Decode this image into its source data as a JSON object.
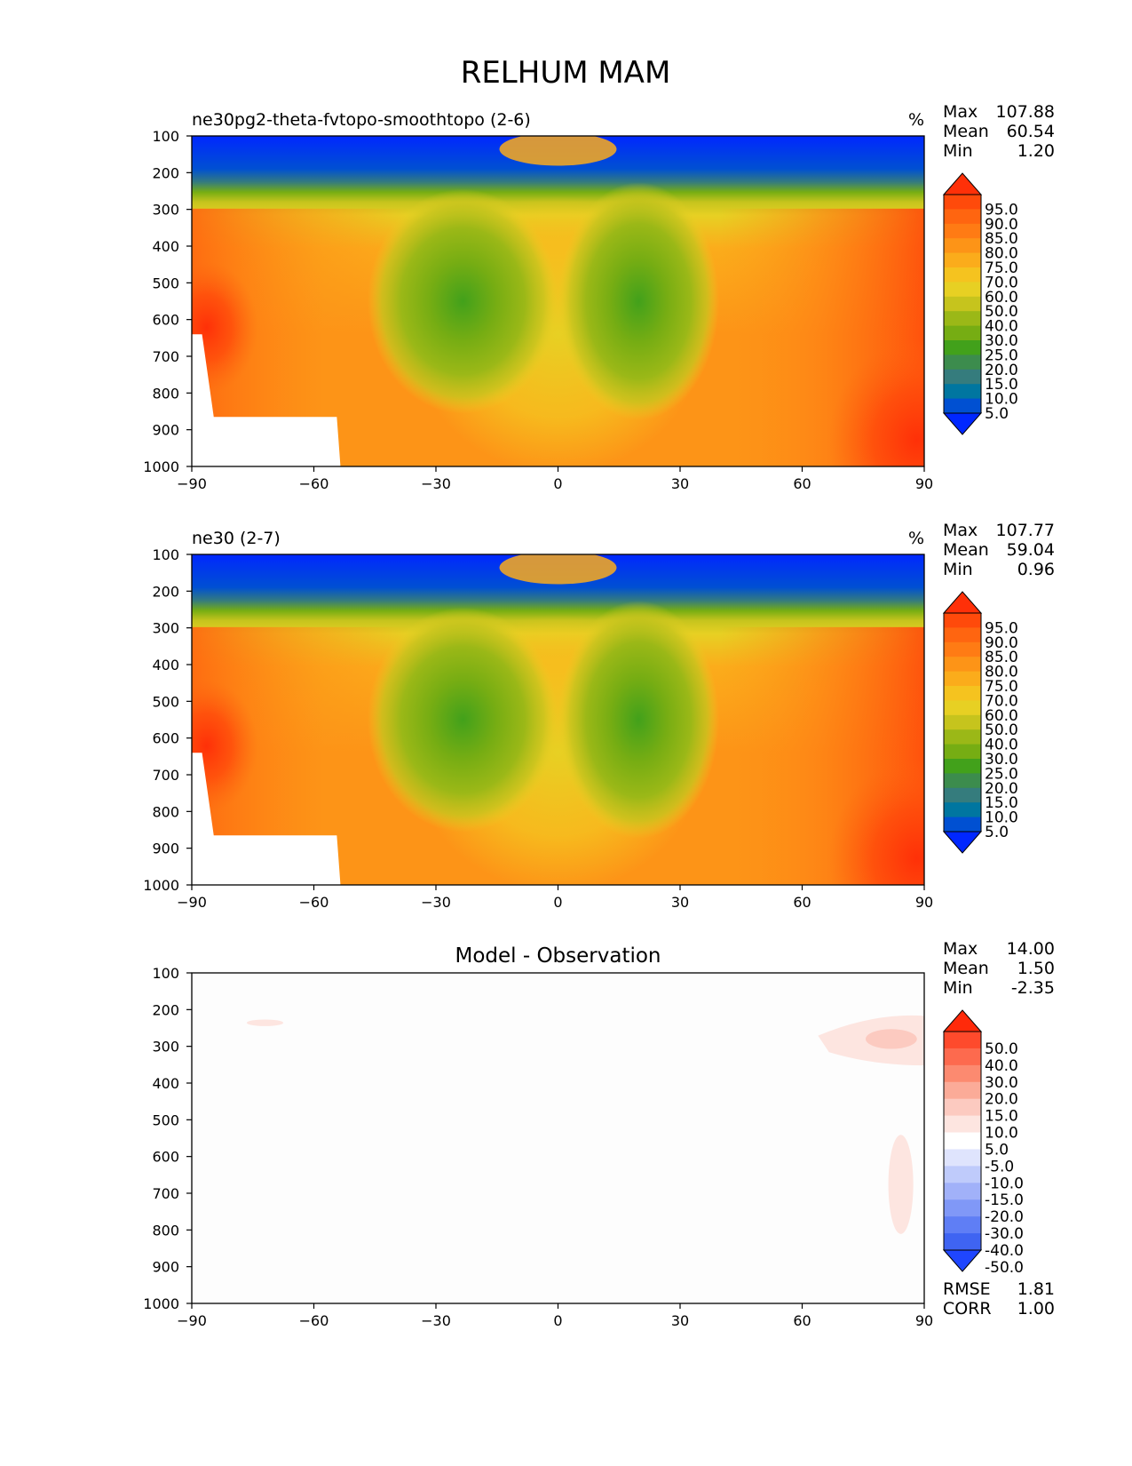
{
  "figure": {
    "title": "RELHUM MAM"
  },
  "chart_data": [
    {
      "type": "heatmap",
      "name": "panel-test",
      "title": "ne30pg2-theta-fvtopo-smoothtopo (2-6)",
      "units": "%",
      "stats": {
        "max_label": "Max",
        "mean_label": "Mean",
        "min_label": "Min",
        "max": "107.88",
        "mean": "60.54",
        "min": "1.20"
      },
      "xticks": [
        "−90",
        "−60",
        "−30",
        "0",
        "30",
        "60",
        "90"
      ],
      "yticks": [
        "100",
        "200",
        "300",
        "400",
        "500",
        "600",
        "700",
        "800",
        "900",
        "1000"
      ],
      "xlim": [
        -90,
        90
      ],
      "ylim": [
        1000,
        100
      ],
      "colorbar": {
        "labels": [
          "95.0",
          "90.0",
          "85.0",
          "80.0",
          "75.0",
          "70.0",
          "60.0",
          "50.0",
          "40.0",
          "30.0",
          "25.0",
          "20.0",
          "15.0",
          "10.0",
          "5.0"
        ],
        "colors": [
          "#ff3008",
          "#ff4a0b",
          "#ff6510",
          "#ff7b14",
          "#fd9417",
          "#fbac1b",
          "#f5c31f",
          "#e7d023",
          "#c6c41d",
          "#9bb817",
          "#76ad13",
          "#42a11b",
          "#3c8c4d",
          "#357c7d",
          "#0076a0",
          "#0050d2",
          "#0027ff"
        ]
      }
    },
    {
      "type": "heatmap",
      "name": "panel-ref",
      "title": "ne30 (2-7)",
      "units": "%",
      "stats": {
        "max_label": "Max",
        "mean_label": "Mean",
        "min_label": "Min",
        "max": "107.77",
        "mean": "59.04",
        "min": "0.96"
      },
      "xticks": [
        "−90",
        "−60",
        "−30",
        "0",
        "30",
        "60",
        "90"
      ],
      "yticks": [
        "100",
        "200",
        "300",
        "400",
        "500",
        "600",
        "700",
        "800",
        "900",
        "1000"
      ],
      "xlim": [
        -90,
        90
      ],
      "ylim": [
        1000,
        100
      ],
      "colorbar": {
        "labels": [
          "95.0",
          "90.0",
          "85.0",
          "80.0",
          "75.0",
          "70.0",
          "60.0",
          "50.0",
          "40.0",
          "30.0",
          "25.0",
          "20.0",
          "15.0",
          "10.0",
          "5.0"
        ],
        "colors": [
          "#ff3008",
          "#ff4a0b",
          "#ff6510",
          "#ff7b14",
          "#fd9417",
          "#fbac1b",
          "#f5c31f",
          "#e7d023",
          "#c6c41d",
          "#9bb817",
          "#76ad13",
          "#42a11b",
          "#3c8c4d",
          "#357c7d",
          "#0076a0",
          "#0050d2",
          "#0027ff"
        ]
      }
    },
    {
      "type": "heatmap",
      "name": "panel-diff",
      "title": "Model - Observation",
      "stats": {
        "max_label": "Max",
        "mean_label": "Mean",
        "min_label": "Min",
        "max": "14.00",
        "mean": "1.50",
        "min": "-2.35"
      },
      "extra_stats": {
        "rmse_label": "RMSE",
        "rmse": "1.81",
        "corr_label": "CORR",
        "corr": "1.00"
      },
      "xticks": [
        "−90",
        "−60",
        "−30",
        "0",
        "30",
        "60",
        "90"
      ],
      "yticks": [
        "100",
        "200",
        "300",
        "400",
        "500",
        "600",
        "700",
        "800",
        "900",
        "1000"
      ],
      "xlim": [
        -90,
        90
      ],
      "ylim": [
        1000,
        100
      ],
      "colorbar": {
        "labels": [
          "50.0",
          "40.0",
          "30.0",
          "20.0",
          "15.0",
          "10.0",
          "5.0",
          "-5.0",
          "-10.0",
          "-15.0",
          "-20.0",
          "-30.0",
          "-40.0",
          "-50.0"
        ],
        "colors": [
          "#ff2a0a",
          "#fe4a2c",
          "#fd6a4e",
          "#fc8a70",
          "#fbab98",
          "#fccac0",
          "#fde5e0",
          "#ffffff",
          "#dfe4fd",
          "#bfcbfb",
          "#a1b1f9",
          "#8098f7",
          "#5f7ef5",
          "#3f64f2",
          "#1f46ff"
        ]
      }
    }
  ]
}
